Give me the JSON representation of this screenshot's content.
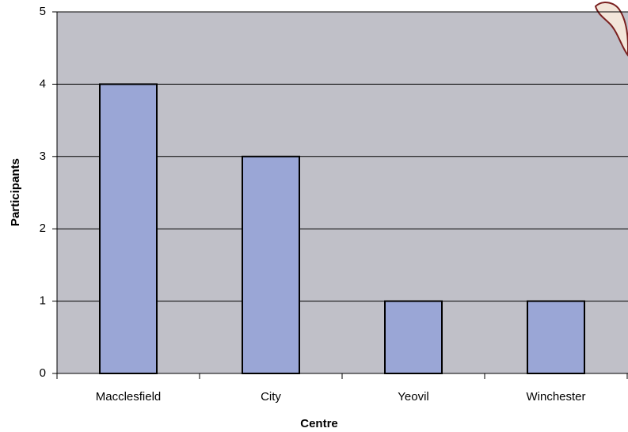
{
  "chart_data": {
    "type": "bar",
    "x_label": "Centre",
    "y_label": "Participants",
    "categories": [
      "Macclesfield",
      "City",
      "Yeovil",
      "Winchester"
    ],
    "values": [
      4,
      3,
      1,
      1
    ],
    "color": "#9aa6d6",
    "ylim": [
      0,
      5
    ],
    "yticks": [
      0,
      1,
      2,
      3,
      4,
      5
    ],
    "grid": true
  }
}
